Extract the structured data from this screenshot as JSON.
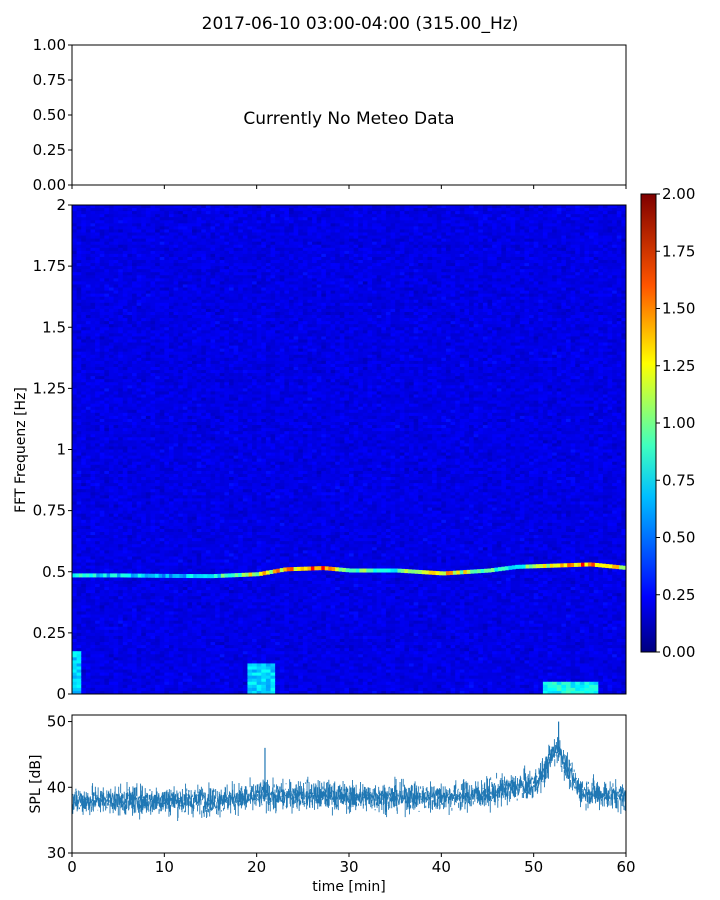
{
  "title": "2017-06-10 03:00-04:00 (315.00_Hz)",
  "chart_data": [
    {
      "type": "line",
      "panel": "meteo",
      "annotation": "Currently No Meteo Data",
      "ylim": [
        0,
        1
      ],
      "yticks": [
        "0.00",
        "0.25",
        "0.50",
        "0.75",
        "1.00"
      ],
      "xlim": [
        0,
        60
      ],
      "series": []
    },
    {
      "type": "heatmap",
      "panel": "spectrogram",
      "ylabel": "FFT Frequenz [Hz]",
      "ylim": [
        0,
        2
      ],
      "yticks": [
        "0",
        "0.25",
        "0.5",
        "0.75",
        "1",
        "1.25",
        "1.5",
        "1.75",
        "2"
      ],
      "xlim": [
        0,
        60
      ],
      "colormap": "jet",
      "clim": [
        0,
        2
      ],
      "colorbar_ticks": [
        "0.00",
        "0.25",
        "0.50",
        "0.75",
        "1.00",
        "1.25",
        "1.50",
        "1.75",
        "2.00"
      ],
      "background_level": 0.2,
      "peak_line": {
        "x": [
          0,
          5,
          10,
          15,
          20,
          23,
          27,
          30,
          35,
          40,
          45,
          48,
          52,
          56,
          60
        ],
        "freq": [
          0.485,
          0.485,
          0.483,
          0.482,
          0.49,
          0.51,
          0.515,
          0.505,
          0.505,
          0.493,
          0.505,
          0.52,
          0.525,
          0.53,
          0.515
        ],
        "level": [
          0.8,
          0.7,
          0.6,
          0.75,
          1.2,
          1.4,
          1.5,
          1.0,
          0.9,
          1.3,
          1.0,
          0.8,
          1.2,
          1.6,
          1.3
        ]
      },
      "low_freq_patches": [
        {
          "x": [
            0,
            1
          ],
          "freq": [
            0,
            0.18
          ],
          "level": 0.7
        },
        {
          "x": [
            19,
            22
          ],
          "freq": [
            0,
            0.12
          ],
          "level": 0.7
        },
        {
          "x": [
            51,
            57
          ],
          "freq": [
            0,
            0.05
          ],
          "level": 0.8
        }
      ]
    },
    {
      "type": "line",
      "panel": "spl",
      "ylabel": "SPL [dB]",
      "xlabel": "time [min]",
      "xlim": [
        0,
        60
      ],
      "ylim": [
        30,
        51
      ],
      "yticks": [
        "30",
        "40",
        "50"
      ],
      "xticks": [
        "0",
        "10",
        "20",
        "30",
        "40",
        "50",
        "60"
      ],
      "color": "#1f77b4",
      "series": [
        {
          "x": [
            0,
            5,
            10,
            15,
            20,
            21,
            22,
            25,
            30,
            35,
            40,
            45,
            48,
            50,
            51,
            52,
            52.7,
            53.5,
            55,
            57,
            60
          ],
          "mean": [
            38,
            38,
            38,
            38,
            38.5,
            39,
            38.5,
            39,
            38.5,
            38.5,
            38.5,
            39,
            40,
            40.5,
            42,
            45,
            46,
            43,
            39.5,
            39,
            38.5
          ],
          "spread": [
            3,
            3,
            3,
            3,
            3,
            3,
            3,
            3,
            3,
            3,
            3,
            3,
            3,
            3,
            3,
            3,
            3,
            3,
            3,
            3,
            3
          ]
        }
      ],
      "spikes": [
        {
          "x": 20.9,
          "y": 46
        },
        {
          "x": 52.7,
          "y": 50
        }
      ]
    }
  ]
}
